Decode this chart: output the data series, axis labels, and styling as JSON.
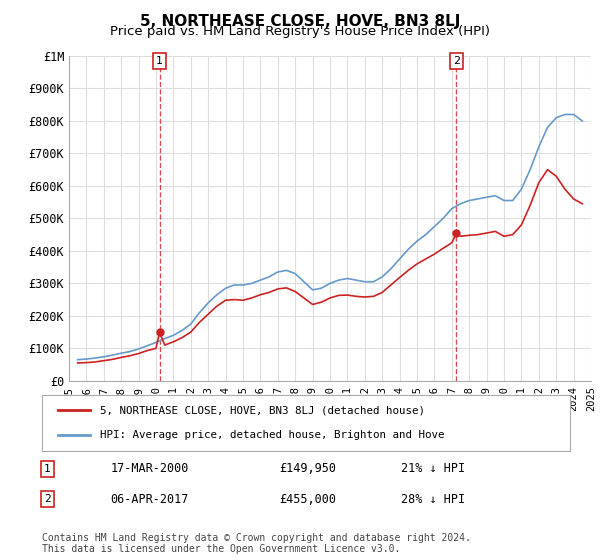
{
  "title": "5, NORTHEASE CLOSE, HOVE, BN3 8LJ",
  "subtitle": "Price paid vs. HM Land Registry's House Price Index (HPI)",
  "xlabel": "",
  "ylabel": "",
  "ylim": [
    0,
    1000000
  ],
  "yticks": [
    0,
    100000,
    200000,
    300000,
    400000,
    500000,
    600000,
    700000,
    800000,
    900000,
    1000000
  ],
  "ytick_labels": [
    "£0",
    "£100K",
    "£200K",
    "£300K",
    "£400K",
    "£500K",
    "£600K",
    "£700K",
    "£800K",
    "£900K",
    "£1M"
  ],
  "hpi_color": "#6699cc",
  "price_color": "#cc2222",
  "vline_color": "#cc2222",
  "vline_alpha": 0.6,
  "background_color": "#ffffff",
  "grid_color": "#dddddd",
  "annotation1": {
    "label": "1",
    "date_str": "17-MAR-2000",
    "price": "£149,950",
    "hpi_pct": "21% ↓ HPI",
    "x_year": 2000.21
  },
  "annotation2": {
    "label": "2",
    "date_str": "06-APR-2017",
    "price": "£455,000",
    "hpi_pct": "28% ↓ HPI",
    "x_year": 2017.27
  },
  "legend_entry1": "5, NORTHEASE CLOSE, HOVE, BN3 8LJ (detached house)",
  "legend_entry2": "HPI: Average price, detached house, Brighton and Hove",
  "footer": "Contains HM Land Registry data © Crown copyright and database right 2024.\nThis data is licensed under the Open Government Licence v3.0.",
  "title_fontsize": 11,
  "subtitle_fontsize": 9.5,
  "tick_fontsize": 8.5,
  "hpi_data": {
    "years": [
      1995.5,
      1996.0,
      1996.5,
      1997.0,
      1997.5,
      1998.0,
      1998.5,
      1999.0,
      1999.5,
      2000.0,
      2000.5,
      2001.0,
      2001.5,
      2002.0,
      2002.5,
      2003.0,
      2003.5,
      2004.0,
      2004.5,
      2005.0,
      2005.5,
      2006.0,
      2006.5,
      2007.0,
      2007.5,
      2008.0,
      2008.5,
      2009.0,
      2009.5,
      2010.0,
      2010.5,
      2011.0,
      2011.5,
      2012.0,
      2012.5,
      2013.0,
      2013.5,
      2014.0,
      2014.5,
      2015.0,
      2015.5,
      2016.0,
      2016.5,
      2017.0,
      2017.5,
      2018.0,
      2018.5,
      2019.0,
      2019.5,
      2020.0,
      2020.5,
      2021.0,
      2021.5,
      2022.0,
      2022.5,
      2023.0,
      2023.5,
      2024.0,
      2024.5
    ],
    "values": [
      65000,
      67000,
      70000,
      74000,
      79000,
      85000,
      90000,
      98000,
      108000,
      118000,
      130000,
      140000,
      155000,
      175000,
      210000,
      240000,
      265000,
      285000,
      295000,
      295000,
      300000,
      310000,
      320000,
      335000,
      340000,
      330000,
      305000,
      280000,
      285000,
      300000,
      310000,
      315000,
      310000,
      305000,
      305000,
      320000,
      345000,
      375000,
      405000,
      430000,
      450000,
      475000,
      500000,
      530000,
      545000,
      555000,
      560000,
      565000,
      570000,
      555000,
      555000,
      590000,
      650000,
      720000,
      780000,
      810000,
      820000,
      820000,
      800000
    ]
  },
  "price_data": {
    "years": [
      1995.5,
      1996.0,
      1996.5,
      1997.0,
      1997.5,
      1998.0,
      1998.5,
      1999.0,
      1999.5,
      2000.0,
      2000.21,
      2000.5,
      2001.0,
      2001.5,
      2002.0,
      2002.5,
      2003.0,
      2003.5,
      2004.0,
      2004.5,
      2005.0,
      2005.5,
      2006.0,
      2006.5,
      2007.0,
      2007.5,
      2008.0,
      2008.5,
      2009.0,
      2009.5,
      2010.0,
      2010.5,
      2011.0,
      2011.5,
      2012.0,
      2012.5,
      2013.0,
      2013.5,
      2014.0,
      2014.5,
      2015.0,
      2015.5,
      2016.0,
      2016.5,
      2017.0,
      2017.27,
      2017.5,
      2018.0,
      2018.5,
      2019.0,
      2019.5,
      2020.0,
      2020.5,
      2021.0,
      2021.5,
      2022.0,
      2022.5,
      2023.0,
      2023.5,
      2024.0,
      2024.5
    ],
    "values": [
      55000,
      56000,
      58000,
      62000,
      66000,
      72000,
      77000,
      84000,
      93000,
      100000,
      149950,
      110000,
      120000,
      133000,
      150000,
      180000,
      205000,
      230000,
      248000,
      250000,
      248000,
      255000,
      265000,
      272000,
      283000,
      286000,
      275000,
      255000,
      235000,
      242000,
      255000,
      263000,
      264000,
      260000,
      258000,
      260000,
      272000,
      295000,
      318000,
      340000,
      360000,
      375000,
      390000,
      408000,
      425000,
      455000,
      445000,
      448000,
      450000,
      455000,
      460000,
      445000,
      450000,
      480000,
      540000,
      610000,
      650000,
      630000,
      590000,
      560000,
      545000
    ]
  },
  "xticks": [
    1995,
    1996,
    1997,
    1998,
    1999,
    2000,
    2001,
    2002,
    2003,
    2004,
    2005,
    2006,
    2007,
    2008,
    2009,
    2010,
    2011,
    2012,
    2013,
    2014,
    2015,
    2016,
    2017,
    2018,
    2019,
    2020,
    2021,
    2022,
    2023,
    2024,
    2025
  ]
}
